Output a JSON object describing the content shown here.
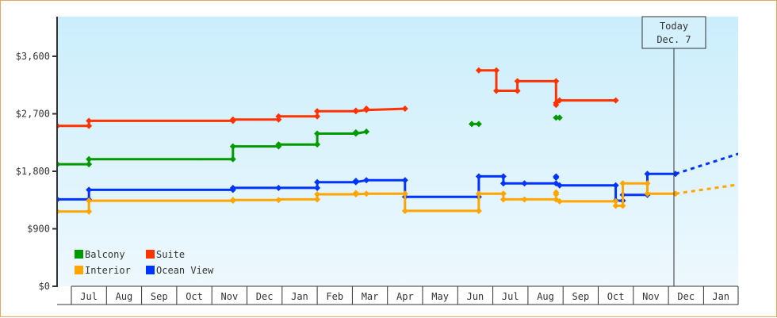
{
  "chart_data": {
    "type": "line",
    "title": "",
    "xlabel": "",
    "ylabel": "",
    "step": true,
    "ylim": [
      0,
      4300
    ],
    "yticks": [
      {
        "value": 0,
        "label": "$0"
      },
      {
        "value": 900,
        "label": "$900"
      },
      {
        "value": 1800,
        "label": "$1,800"
      },
      {
        "value": 2700,
        "label": "$2,700"
      },
      {
        "value": 3600,
        "label": "$3,600"
      }
    ],
    "x_categories": [
      "",
      "Jul",
      "Aug",
      "Sep",
      "Oct",
      "Nov",
      "Dec",
      "Jan",
      "Feb",
      "Mar",
      "Apr",
      "May",
      "Jun",
      "Jul",
      "Aug",
      "Sep",
      "Oct",
      "Nov",
      "Dec",
      "Jan"
    ],
    "x_unit": "month index (0 = Jul of year 1 start; fractional = position within month)",
    "grid": false,
    "legend": {
      "position": "lower-left inside plot",
      "entries": [
        {
          "name": "Balcony",
          "color": "#009900"
        },
        {
          "name": "Suite",
          "color": "#ff3300"
        },
        {
          "name": "Interior",
          "color": "#ffa500"
        },
        {
          "name": "Ocean View",
          "color": "#0033ff"
        }
      ]
    },
    "today_marker": {
      "line1": "Today",
      "line2": "Dec. 7",
      "x": 17.2
    },
    "series": [
      {
        "name": "Suite",
        "color": "#ff3300",
        "segments": [
          [
            [
              -0.4,
              2510
            ],
            [
              0.5,
              2510
            ],
            [
              0.5,
              2590
            ],
            [
              4.6,
              2590
            ],
            [
              4.6,
              2610
            ],
            [
              5.9,
              2610
            ],
            [
              5.9,
              2660
            ],
            [
              7.0,
              2660
            ],
            [
              7.0,
              2740
            ],
            [
              8.1,
              2740
            ],
            [
              8.4,
              2760
            ],
            [
              9.5,
              2780
            ]
          ],
          [
            [
              11.6,
              3380
            ],
            [
              12.1,
              3380
            ],
            [
              12.1,
              3060
            ],
            [
              12.7,
              3060
            ],
            [
              12.7,
              3210
            ],
            [
              13.8,
              3210
            ],
            [
              13.8,
              2840
            ],
            [
              13.8,
              2910
            ],
            [
              15.5,
              2910
            ]
          ]
        ],
        "markers": [
          [
            -0.4,
            2510
          ],
          [
            0.5,
            2510
          ],
          [
            0.5,
            2590
          ],
          [
            4.6,
            2590
          ],
          [
            4.6,
            2610
          ],
          [
            5.9,
            2610
          ],
          [
            5.9,
            2660
          ],
          [
            7.0,
            2660
          ],
          [
            7.0,
            2740
          ],
          [
            8.1,
            2740
          ],
          [
            8.1,
            2750
          ],
          [
            8.4,
            2760
          ],
          [
            8.4,
            2780
          ],
          [
            9.5,
            2780
          ],
          [
            11.6,
            3380
          ],
          [
            12.1,
            3380
          ],
          [
            12.1,
            3060
          ],
          [
            12.7,
            3060
          ],
          [
            12.7,
            3210
          ],
          [
            13.8,
            3210
          ],
          [
            13.8,
            2840
          ],
          [
            13.8,
            2870
          ],
          [
            13.9,
            2910
          ],
          [
            15.5,
            2910
          ]
        ]
      },
      {
        "name": "Balcony",
        "color": "#009900",
        "segments": [
          [
            [
              -0.4,
              1910
            ],
            [
              0.5,
              1910
            ],
            [
              0.5,
              1990
            ],
            [
              4.6,
              1990
            ],
            [
              4.6,
              2190
            ],
            [
              5.9,
              2190
            ],
            [
              5.9,
              2220
            ],
            [
              7.0,
              2220
            ],
            [
              7.0,
              2390
            ],
            [
              8.1,
              2390
            ],
            [
              8.4,
              2420
            ]
          ]
        ],
        "isolated": [
          [
            11.4,
            2540
          ],
          [
            11.6,
            2540
          ],
          [
            13.8,
            2640
          ],
          [
            13.9,
            2640
          ]
        ],
        "markers": [
          [
            -0.4,
            1910
          ],
          [
            0.5,
            1910
          ],
          [
            0.5,
            1990
          ],
          [
            4.6,
            1990
          ],
          [
            4.6,
            2190
          ],
          [
            5.9,
            2190
          ],
          [
            5.9,
            2220
          ],
          [
            7.0,
            2220
          ],
          [
            7.0,
            2390
          ],
          [
            8.1,
            2390
          ],
          [
            8.1,
            2410
          ],
          [
            8.4,
            2420
          ],
          [
            11.4,
            2540
          ],
          [
            11.6,
            2540
          ],
          [
            13.8,
            2640
          ],
          [
            13.9,
            2640
          ]
        ]
      },
      {
        "name": "Ocean View",
        "color": "#0033ff",
        "segments": [
          [
            [
              -0.4,
              1360
            ],
            [
              0.5,
              1360
            ],
            [
              0.5,
              1510
            ],
            [
              4.6,
              1510
            ],
            [
              4.6,
              1540
            ],
            [
              5.9,
              1540
            ],
            [
              5.9,
              1540
            ],
            [
              7.0,
              1540
            ],
            [
              7.0,
              1630
            ],
            [
              8.1,
              1630
            ],
            [
              8.4,
              1660
            ],
            [
              9.5,
              1660
            ],
            [
              9.5,
              1400
            ],
            [
              11.6,
              1400
            ],
            [
              11.6,
              1720
            ],
            [
              12.3,
              1720
            ],
            [
              12.3,
              1610
            ],
            [
              12.9,
              1610
            ],
            [
              13.8,
              1610
            ],
            [
              13.9,
              1580
            ],
            [
              15.5,
              1580
            ],
            [
              15.5,
              1340
            ],
            [
              15.7,
              1340
            ],
            [
              15.7,
              1430
            ],
            [
              16.4,
              1430
            ],
            [
              16.4,
              1760
            ],
            [
              17.2,
              1760
            ]
          ]
        ],
        "projection": [
          [
            17.2,
            1760
          ],
          [
            19.2,
            2110
          ]
        ],
        "markers": [
          [
            -0.4,
            1360
          ],
          [
            0.5,
            1360
          ],
          [
            0.5,
            1510
          ],
          [
            4.6,
            1510
          ],
          [
            4.6,
            1540
          ],
          [
            5.9,
            1540
          ],
          [
            7.0,
            1540
          ],
          [
            7.0,
            1630
          ],
          [
            8.1,
            1630
          ],
          [
            8.1,
            1650
          ],
          [
            8.4,
            1660
          ],
          [
            9.5,
            1660
          ],
          [
            9.5,
            1400
          ],
          [
            11.6,
            1400
          ],
          [
            11.6,
            1720
          ],
          [
            12.3,
            1720
          ],
          [
            12.3,
            1610
          ],
          [
            12.9,
            1610
          ],
          [
            13.8,
            1610
          ],
          [
            13.8,
            1720
          ],
          [
            13.8,
            1700
          ],
          [
            13.9,
            1580
          ],
          [
            15.5,
            1580
          ],
          [
            15.5,
            1340
          ],
          [
            15.7,
            1340
          ],
          [
            15.7,
            1430
          ],
          [
            16.4,
            1430
          ],
          [
            16.4,
            1760
          ],
          [
            17.2,
            1760
          ]
        ]
      },
      {
        "name": "Interior",
        "color": "#ffa500",
        "segments": [
          [
            [
              -0.4,
              1170
            ],
            [
              0.5,
              1170
            ],
            [
              0.5,
              1340
            ],
            [
              4.6,
              1340
            ],
            [
              4.6,
              1350
            ],
            [
              5.9,
              1350
            ],
            [
              5.9,
              1360
            ],
            [
              7.0,
              1360
            ],
            [
              7.0,
              1440
            ],
            [
              8.1,
              1440
            ],
            [
              8.4,
              1450
            ],
            [
              9.5,
              1450
            ],
            [
              9.5,
              1180
            ],
            [
              11.6,
              1180
            ],
            [
              11.6,
              1450
            ],
            [
              12.3,
              1450
            ],
            [
              12.3,
              1360
            ],
            [
              12.9,
              1360
            ],
            [
              13.8,
              1360
            ],
            [
              13.9,
              1330
            ],
            [
              15.5,
              1330
            ],
            [
              15.5,
              1260
            ],
            [
              15.7,
              1260
            ],
            [
              15.7,
              1610
            ],
            [
              16.4,
              1610
            ],
            [
              16.4,
              1450
            ],
            [
              17.2,
              1450
            ]
          ]
        ],
        "projection": [
          [
            17.2,
            1450
          ],
          [
            19.2,
            1610
          ]
        ],
        "markers": [
          [
            -0.4,
            1170
          ],
          [
            0.5,
            1170
          ],
          [
            0.5,
            1340
          ],
          [
            4.6,
            1340
          ],
          [
            4.6,
            1350
          ],
          [
            5.9,
            1350
          ],
          [
            7.0,
            1360
          ],
          [
            7.0,
            1440
          ],
          [
            8.1,
            1440
          ],
          [
            8.1,
            1460
          ],
          [
            8.4,
            1450
          ],
          [
            9.5,
            1450
          ],
          [
            9.5,
            1180
          ],
          [
            11.6,
            1180
          ],
          [
            11.6,
            1450
          ],
          [
            12.3,
            1450
          ],
          [
            12.3,
            1360
          ],
          [
            12.9,
            1360
          ],
          [
            13.8,
            1360
          ],
          [
            13.8,
            1440
          ],
          [
            13.8,
            1470
          ],
          [
            13.9,
            1330
          ],
          [
            15.5,
            1330
          ],
          [
            15.5,
            1260
          ],
          [
            15.7,
            1260
          ],
          [
            15.7,
            1610
          ],
          [
            16.4,
            1610
          ],
          [
            16.4,
            1450
          ],
          [
            17.2,
            1450
          ]
        ]
      }
    ]
  }
}
